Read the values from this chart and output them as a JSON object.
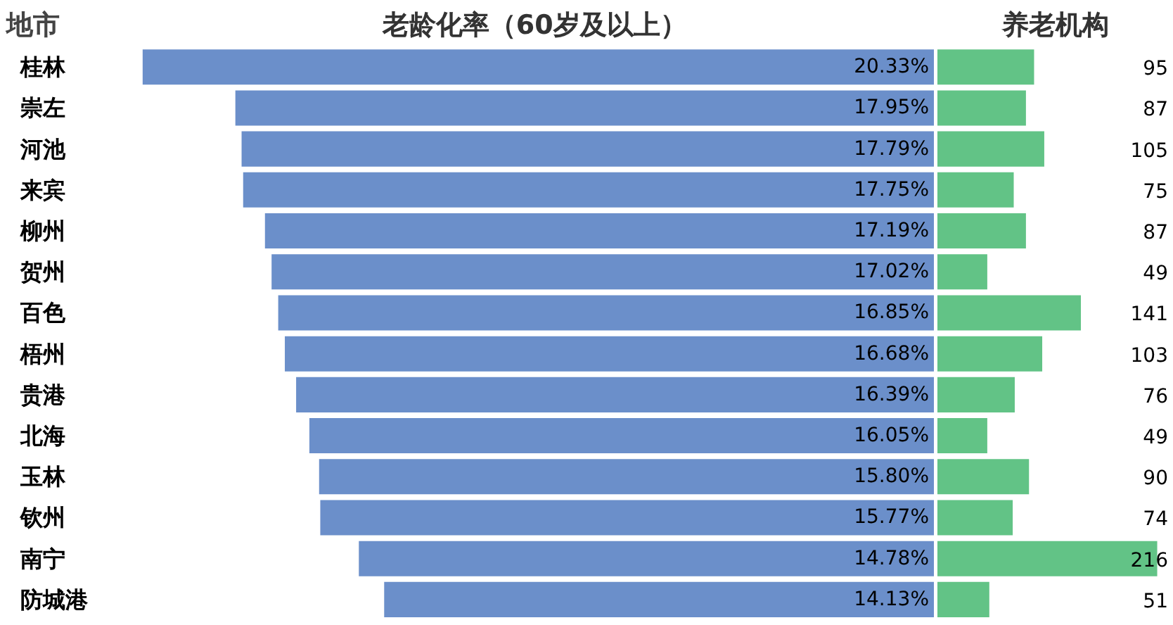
{
  "chart_data": [
    {
      "type": "bar",
      "orientation": "horizontal",
      "title": "老龄化率（60岁及以上）",
      "ylabel": "地市",
      "categories": [
        "桂林",
        "崇左",
        "河池",
        "来宾",
        "柳州",
        "贺州",
        "百色",
        "梧州",
        "贵港",
        "北海",
        "玉林",
        "钦州",
        "南宁",
        "防城港"
      ],
      "values": [
        20.33,
        17.95,
        17.79,
        17.75,
        17.19,
        17.02,
        16.85,
        16.68,
        16.39,
        16.05,
        15.8,
        15.77,
        14.78,
        14.13
      ],
      "value_labels": [
        "20.33%",
        "17.95%",
        "17.79%",
        "17.75%",
        "17.19%",
        "17.02%",
        "16.85%",
        "16.68%",
        "16.39%",
        "16.05%",
        "15.80%",
        "15.77%",
        "14.78%",
        "14.13%"
      ],
      "color": "#6b8fca",
      "tick_labels": "y",
      "grid": false,
      "legend": false
    },
    {
      "type": "bar",
      "orientation": "horizontal",
      "title": "养老机构",
      "categories": [
        null,
        null,
        null,
        null,
        null,
        null,
        null,
        null,
        null,
        null,
        null,
        null,
        null,
        null
      ],
      "values": [
        95,
        87,
        105,
        75,
        87,
        49,
        141,
        103,
        76,
        49,
        90,
        74,
        216,
        51
      ],
      "data_labels": true,
      "color": "#62c386",
      "tick_labels": false,
      "grid": false,
      "legend": false
    }
  ]
}
